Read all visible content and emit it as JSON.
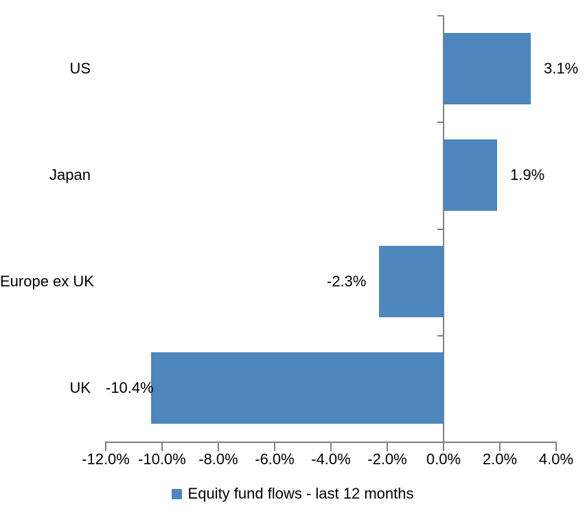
{
  "chart_data": {
    "type": "bar",
    "orientation": "horizontal",
    "categories": [
      "US",
      "Japan",
      "Europe ex UK",
      "UK"
    ],
    "values": [
      3.1,
      1.9,
      -2.3,
      -10.4
    ],
    "value_labels": [
      "3.1%",
      "1.9%",
      "-2.3%",
      "-10.4%"
    ],
    "xlim": [
      -12,
      4
    ],
    "x_ticks": [
      -12,
      -10,
      -8,
      -6,
      -4,
      -2,
      0,
      2,
      4
    ],
    "x_tick_labels": [
      "-12.0%",
      "-10.0%",
      "-8.0%",
      "-6.0%",
      "-4.0%",
      "-2.0%",
      "0.0%",
      "2.0%",
      "4.0%"
    ],
    "grid": false,
    "bar_color": "#4E86BE",
    "axis_color": "#808080",
    "text_color": "#000000",
    "legend_position": "bottom-center",
    "legend": [
      {
        "label": "Equity fund flows - last 12 months",
        "color": "#4E86BE"
      }
    ]
  }
}
